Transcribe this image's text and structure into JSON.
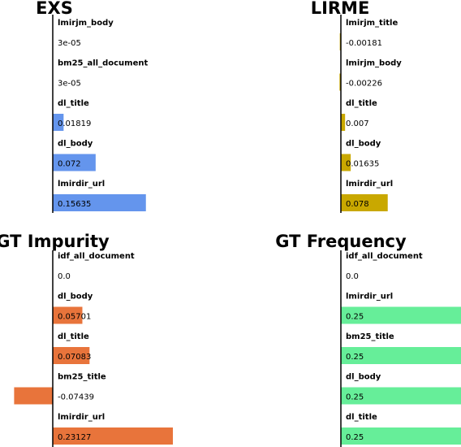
{
  "chart_data": [
    {
      "type": "bar",
      "title": "EXS",
      "color": "#6495ed",
      "xlim": [
        0,
        0.5
      ],
      "categories": [
        "lmirjm_body",
        "bm25_all_document",
        "dl_title",
        "dl_body",
        "lmirdir_url"
      ],
      "values": [
        3e-05,
        3e-05,
        0.01819,
        0.072,
        0.15635
      ],
      "value_labels": [
        "3e-05",
        "3e-05",
        "0.01819",
        "0.072",
        "0.15635"
      ]
    },
    {
      "type": "bar",
      "title": "LIRME",
      "color": "#c9a800",
      "xlim": [
        0,
        0.2
      ],
      "categories": [
        "lmirjm_title",
        "lmirjm_body",
        "dl_title",
        "dl_body",
        "lmirdir_url"
      ],
      "values": [
        -0.00181,
        -0.00226,
        0.007,
        0.01635,
        0.078
      ],
      "value_labels": [
        "-0.00181",
        "-0.00226",
        "0.007",
        "0.01635",
        "0.078"
      ]
    },
    {
      "type": "bar",
      "title": "GT Impurity",
      "color": "#e8743b",
      "xlim": [
        -0.1,
        0.5
      ],
      "categories": [
        "idf_all_document",
        "dl_body",
        "dl_title",
        "bm25_title",
        "lmirdir_url"
      ],
      "values": [
        0.0,
        0.05701,
        0.07083,
        -0.07439,
        0.23127
      ],
      "value_labels": [
        "0.0",
        "0.05701",
        "0.07083",
        "-0.07439",
        "0.23127"
      ]
    },
    {
      "type": "bar",
      "title": "GT Frequency",
      "color": "#66ee99",
      "xlim": [
        0,
        0.25
      ],
      "categories": [
        "idf_all_document",
        "lmirdir_url",
        "bm25_title",
        "dl_body",
        "dl_title"
      ],
      "values": [
        0.0,
        0.25,
        0.25,
        0.25,
        0.25
      ],
      "value_labels": [
        "0.0",
        "0.25",
        "0.25",
        "0.25",
        "0.25"
      ]
    }
  ]
}
